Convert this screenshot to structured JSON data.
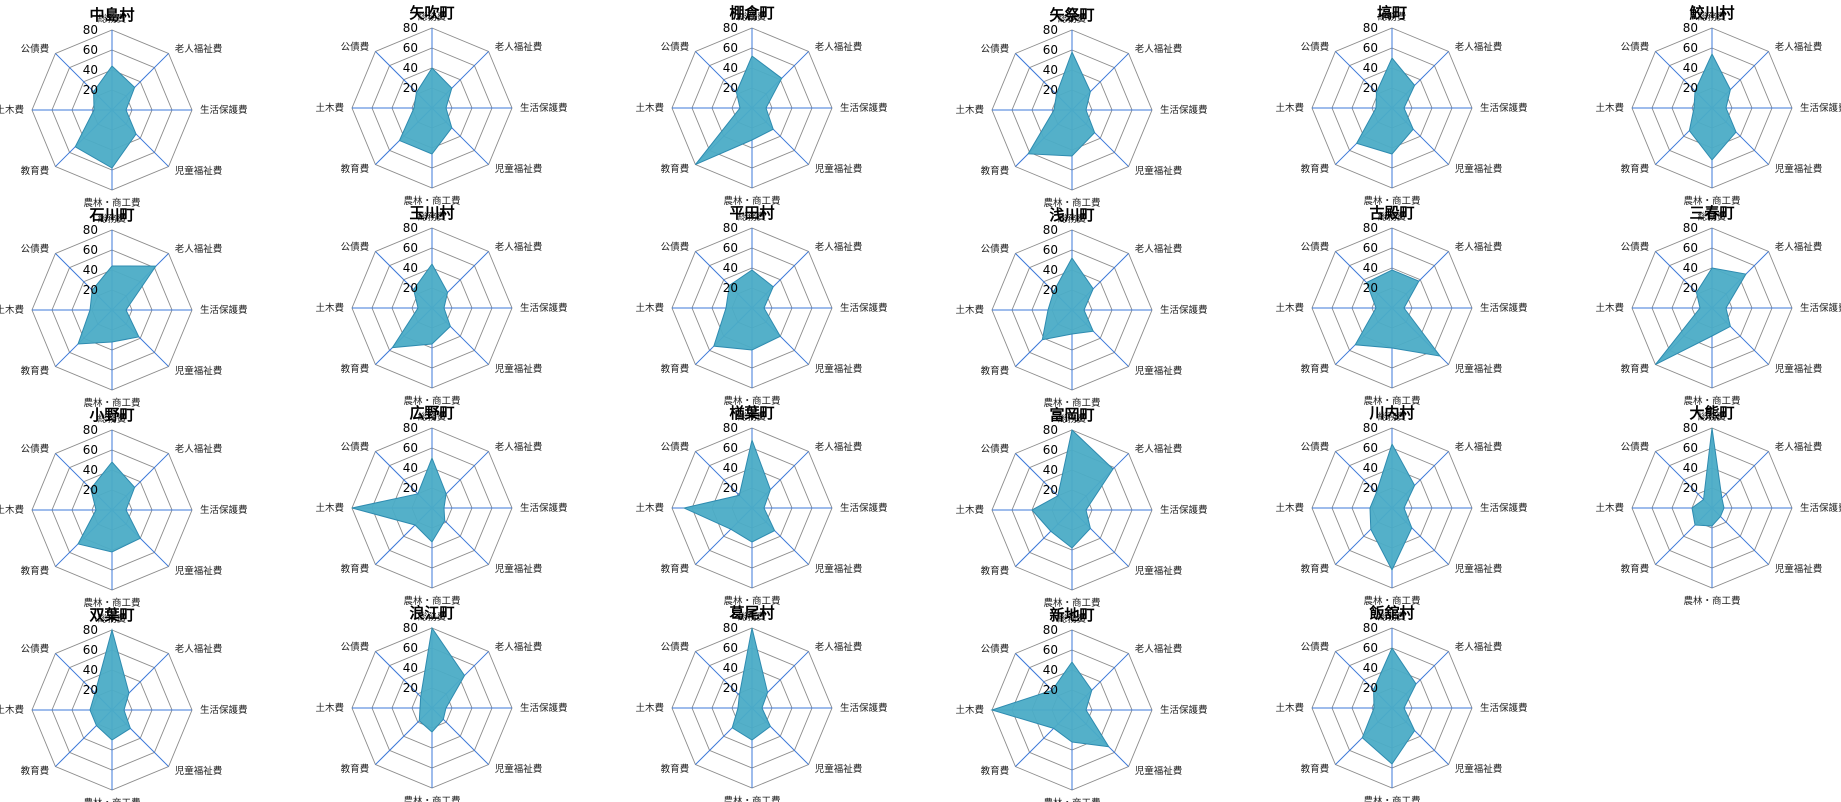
{
  "chart_data": {
    "type": "radar",
    "axes": [
      "総務費",
      "老人福祉費",
      "生活保護費",
      "児童福祉費",
      "農林・商工費",
      "教育費",
      "土木費",
      "公債費"
    ],
    "ticks": [
      20,
      40,
      60,
      80
    ],
    "rlim": [
      0,
      80
    ],
    "colors": {
      "fill": "#4BACC6",
      "stroke": "#2E8BB0",
      "ring": "#8c8c8c",
      "spoke": "#3C78D8"
    },
    "charts": [
      {
        "name": "中島村",
        "values": [
          44,
          32,
          14,
          34,
          58,
          52,
          18,
          26
        ]
      },
      {
        "name": "矢吹町",
        "values": [
          40,
          28,
          14,
          28,
          46,
          46,
          18,
          22
        ]
      },
      {
        "name": "棚倉町",
        "values": [
          52,
          42,
          14,
          30,
          32,
          80,
          12,
          22
        ]
      },
      {
        "name": "矢祭町",
        "values": [
          58,
          26,
          14,
          32,
          46,
          62,
          18,
          22
        ]
      },
      {
        "name": "塙町",
        "values": [
          50,
          32,
          12,
          30,
          46,
          50,
          16,
          22
        ]
      },
      {
        "name": "鮫川村",
        "values": [
          54,
          26,
          14,
          34,
          52,
          32,
          18,
          24
        ]
      },
      {
        "name": "石川町",
        "values": [
          44,
          62,
          14,
          38,
          32,
          48,
          22,
          28
        ]
      },
      {
        "name": "玉川村",
        "values": [
          44,
          22,
          12,
          26,
          36,
          56,
          14,
          26
        ]
      },
      {
        "name": "平田村",
        "values": [
          38,
          30,
          12,
          40,
          42,
          54,
          26,
          32
        ]
      },
      {
        "name": "浅川町",
        "values": [
          52,
          30,
          12,
          30,
          24,
          42,
          24,
          26
        ]
      },
      {
        "name": "古殿町",
        "values": [
          38,
          38,
          12,
          68,
          40,
          52,
          16,
          36
        ]
      },
      {
        "name": "三春町",
        "values": [
          40,
          48,
          14,
          26,
          28,
          80,
          12,
          22
        ]
      },
      {
        "name": "小野町",
        "values": [
          48,
          32,
          14,
          40,
          42,
          48,
          16,
          30
        ]
      },
      {
        "name": "広野町",
        "values": [
          50,
          20,
          12,
          18,
          34,
          24,
          80,
          20
        ]
      },
      {
        "name": "楢葉町",
        "values": [
          68,
          26,
          12,
          32,
          34,
          30,
          68,
          18
        ]
      },
      {
        "name": "富岡町",
        "values": [
          80,
          58,
          14,
          26,
          38,
          30,
          40,
          20
        ]
      },
      {
        "name": "川内村",
        "values": [
          64,
          32,
          12,
          28,
          62,
          30,
          22,
          22
        ]
      },
      {
        "name": "大熊町",
        "values": [
          80,
          14,
          12,
          12,
          18,
          24,
          20,
          12
        ]
      },
      {
        "name": "双葉町",
        "values": [
          82,
          24,
          12,
          26,
          30,
          22,
          22,
          24
        ]
      },
      {
        "name": "浪江町",
        "values": [
          80,
          46,
          14,
          16,
          24,
          18,
          12,
          16
        ]
      },
      {
        "name": "葛尾村",
        "values": [
          82,
          22,
          10,
          26,
          32,
          28,
          14,
          18
        ]
      },
      {
        "name": "新地町",
        "values": [
          48,
          28,
          14,
          52,
          32,
          26,
          80,
          28
        ]
      },
      {
        "name": "飯舘村",
        "values": [
          60,
          34,
          12,
          32,
          56,
          42,
          18,
          26
        ]
      }
    ]
  }
}
